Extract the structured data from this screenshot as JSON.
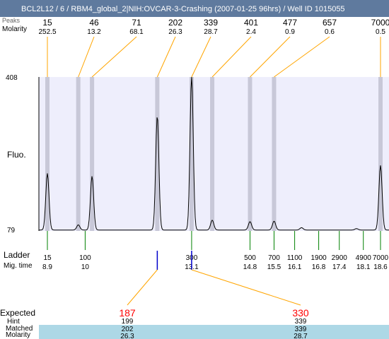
{
  "header": {
    "title": "BCL2L12 / 6 / RBM4_global_2|NIH:OVCAR-3-Crashing (2007-01-25 96hrs) / Well ID 1015055",
    "overlap_label": "Peaks"
  },
  "top_rows": {
    "size_label": "",
    "molarity_label": "Molarity"
  },
  "left_labels": {
    "ladder": "Ladder",
    "mig_time": "Mig. time",
    "fluo": "Fluo."
  },
  "bottom_labels": {
    "expected": "Expected",
    "hint": "Hint",
    "matched": "Matched",
    "molarity": "Molarity"
  },
  "colors": {
    "header": "#5f7a9e",
    "plot_bg": "#eeeefc",
    "band": "#c8c8d8",
    "orange": "#ffa500",
    "green": "#008000",
    "blue": "#0000cc",
    "red": "#ff0000",
    "match_bg": "#add8e6"
  },
  "chart_data": {
    "type": "line",
    "title": "BCL2L12 / 6 / RBM4_global_2|NIH:OVCAR-3-Crashing (2007-01-25 96hrs) / Well ID 1015055",
    "ylabel": "Fluo.",
    "ylim": [
      79,
      408
    ],
    "yticks": [
      "408",
      "79"
    ],
    "peaks": [
      {
        "size": "15",
        "molarity": "252.5",
        "time": 8.9,
        "height": 200
      },
      {
        "size": "46",
        "molarity": "13.2",
        "time": 9.8,
        "height": 90
      },
      {
        "size": "71",
        "molarity": "68.1",
        "time": 10.2,
        "height": 194
      },
      {
        "size": "202",
        "molarity": "26.3",
        "time": 12.1,
        "height": 323
      },
      {
        "size": "339",
        "molarity": "28.7",
        "time": 13.1,
        "height": 408
      },
      {
        "size": "401",
        "molarity": "2.4",
        "time": 13.7,
        "height": 100
      },
      {
        "size": "477",
        "molarity": "0.9",
        "time": 14.8,
        "height": 97
      },
      {
        "size": "657",
        "molarity": "0.6",
        "time": 15.5,
        "height": 98
      },
      {
        "size": "7000",
        "molarity": "0.5",
        "time": 18.6,
        "height": 217
      }
    ],
    "ladder": [
      {
        "size": "15",
        "time": "8.9",
        "t": 8.9
      },
      {
        "size": "100",
        "time": "10",
        "t": 10.0
      },
      {
        "size": "300",
        "time": "13.1",
        "t": 13.1
      },
      {
        "size": "500",
        "time": "14.8",
        "t": 14.8
      },
      {
        "size": "700",
        "time": "15.5",
        "t": 15.5
      },
      {
        "size": "1100",
        "time": "16.1",
        "t": 16.1
      },
      {
        "size": "1900",
        "time": "16.8",
        "t": 16.8
      },
      {
        "size": "2900",
        "time": "17.4",
        "t": 17.4
      },
      {
        "size": "4900",
        "time": "18.1",
        "t": 18.1
      },
      {
        "size": "7000",
        "time": "18.6",
        "t": 18.6
      }
    ],
    "expected": [
      {
        "expected": "187",
        "hint": "199",
        "matched": "202",
        "molarity": "26.3",
        "t": 12.1
      },
      {
        "expected": "330",
        "hint": "339",
        "matched": "339",
        "molarity": "28.7",
        "t": 13.1
      }
    ]
  }
}
